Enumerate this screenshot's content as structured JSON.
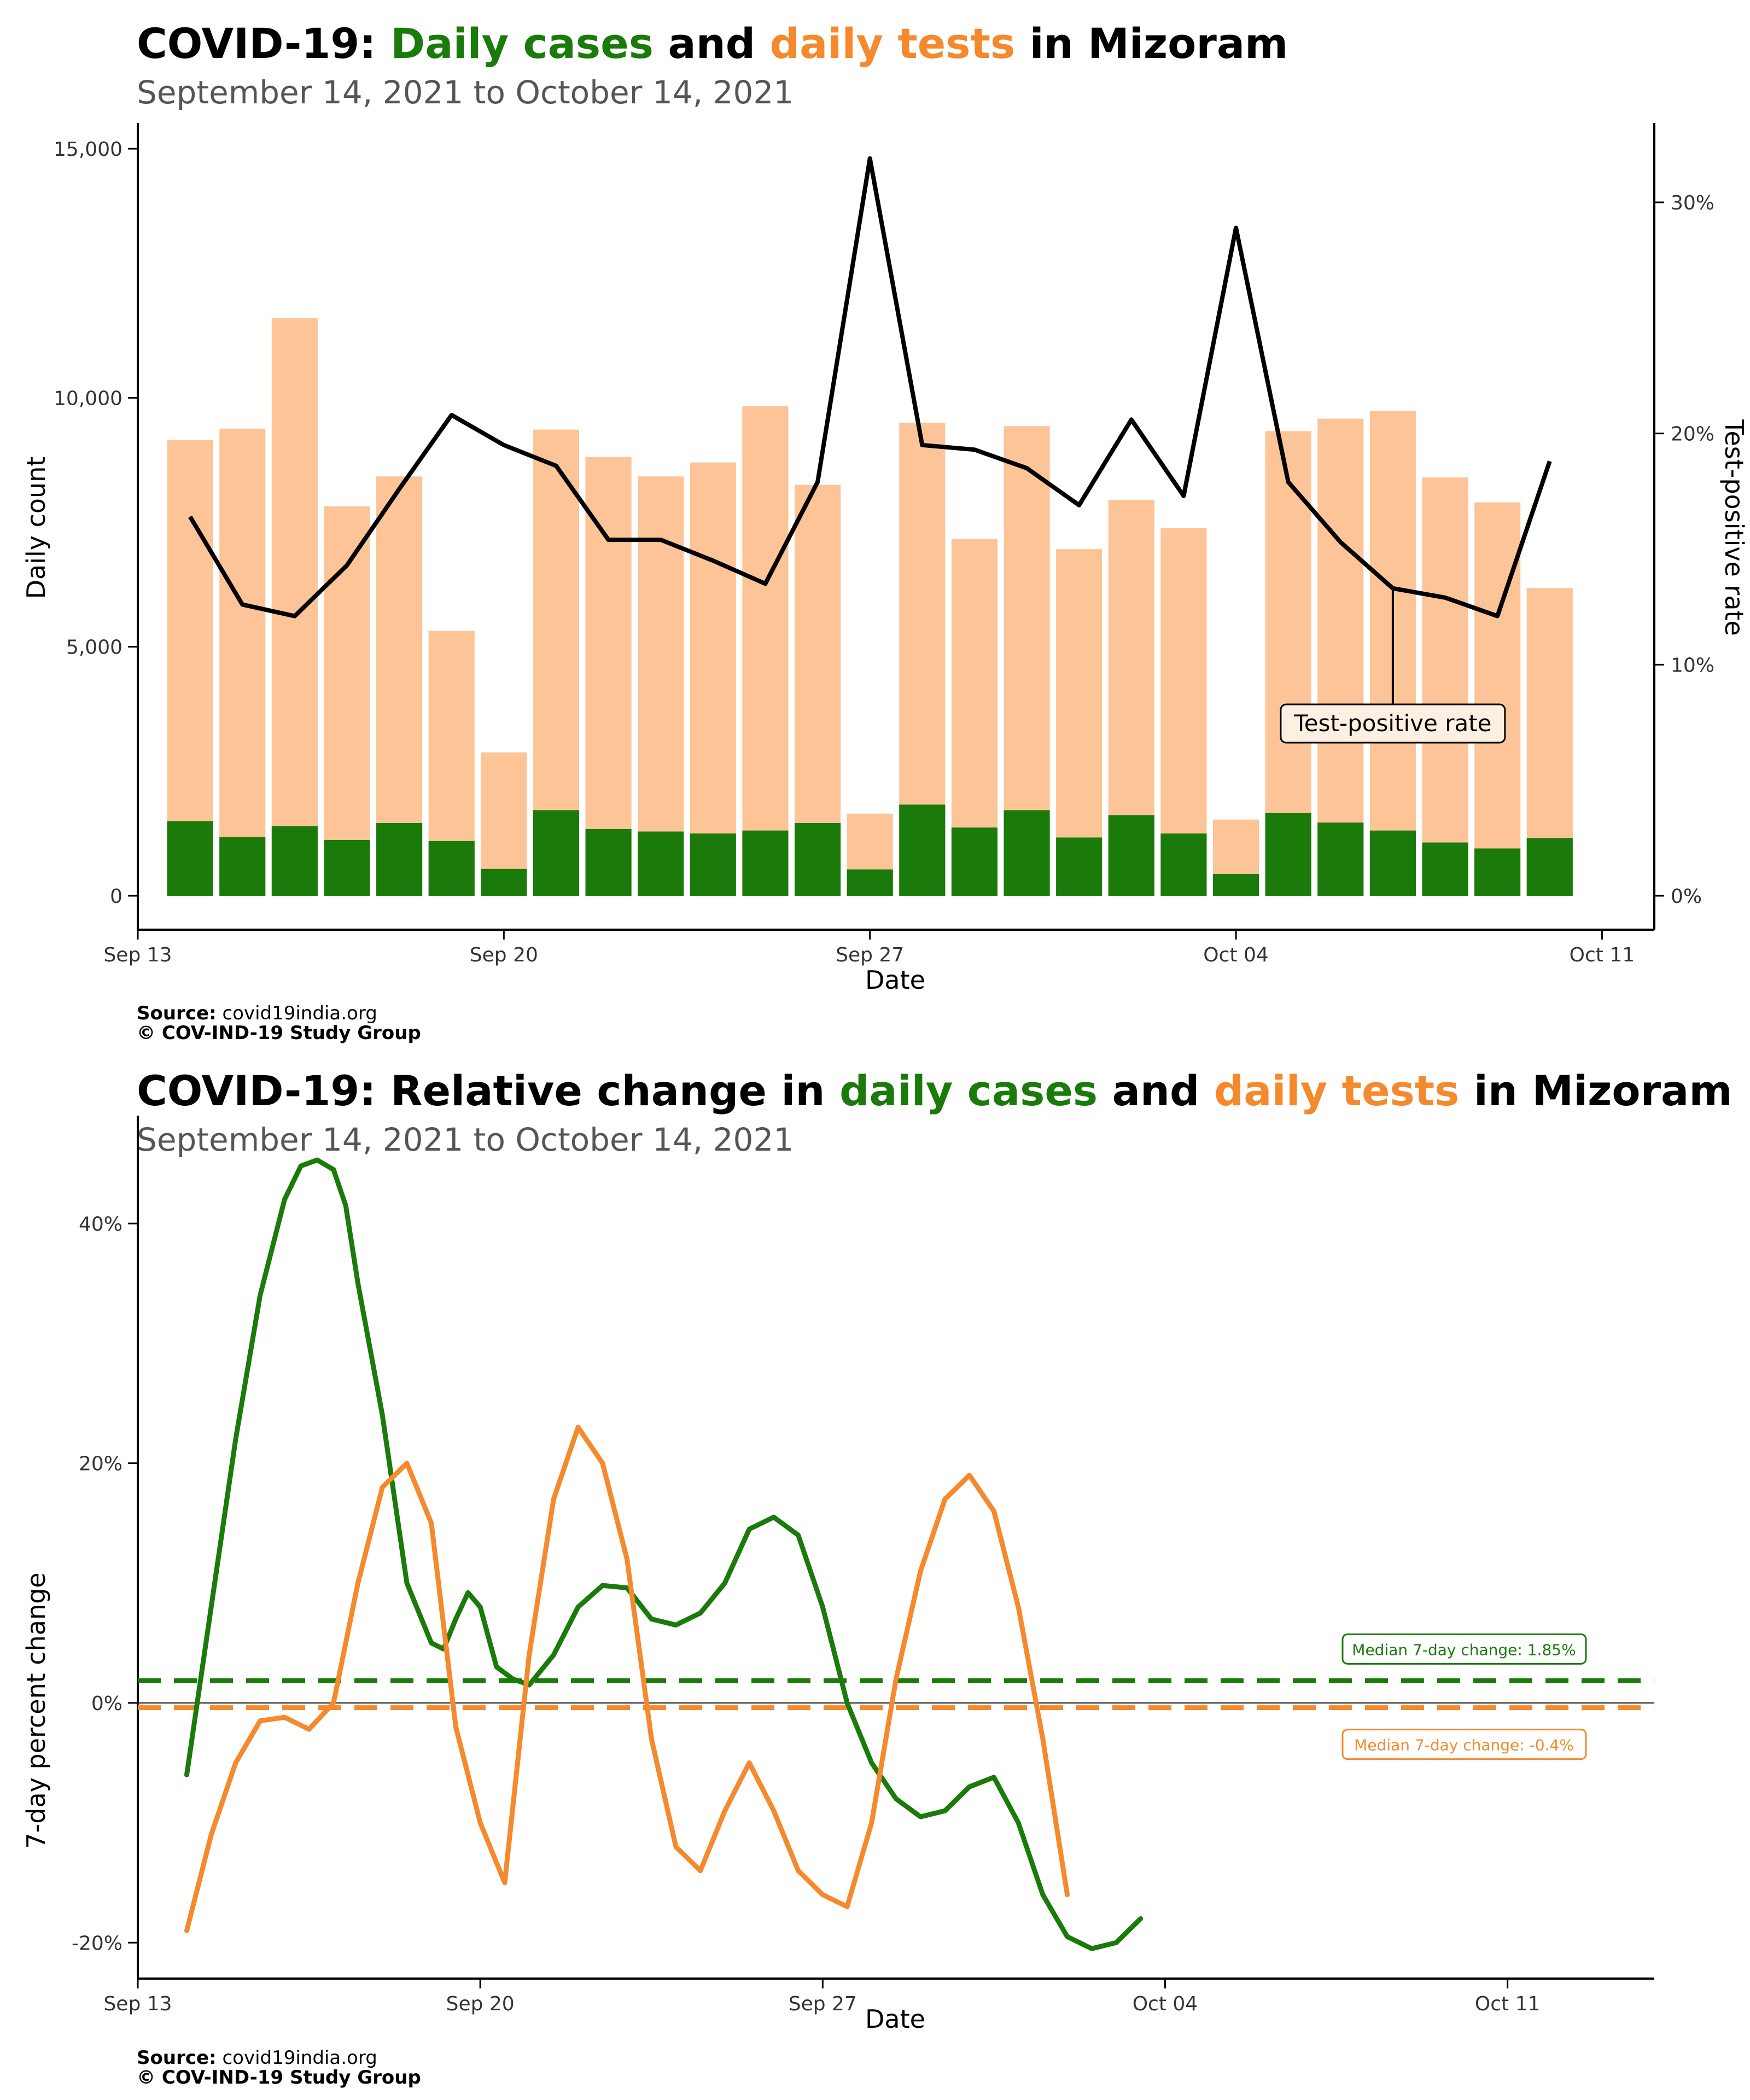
{
  "chart_data": [
    {
      "type": "bar",
      "title": {
        "prefix": "COVID-19:",
        "series1": "Daily cases",
        "middle": "and",
        "series2": "daily tests",
        "suffix": "in Mizoram"
      },
      "subtitle": "September 14, 2021 to October 14, 2021",
      "xlabel": "Date",
      "ylabel": "Daily count",
      "y2label": "Test-positive rate",
      "x_ticks": [
        "Sep 13",
        "Sep 20",
        "Sep 27",
        "Oct 04",
        "Oct 11"
      ],
      "x_tick_dates": [
        "2021-09-13",
        "2021-09-20",
        "2021-09-27",
        "2021-10-04",
        "2021-10-11"
      ],
      "xlim": [
        "2021-09-13",
        "2021-10-12"
      ],
      "y_ticks": [
        "0",
        "5,000",
        "10,000",
        "15,000"
      ],
      "y_tick_values": [
        0,
        5000,
        10000,
        15000
      ],
      "ylim": [
        0,
        15000
      ],
      "y2_ticks": [
        "0%",
        "10%",
        "20%",
        "30%"
      ],
      "y2_tick_values": [
        0,
        10,
        20,
        30
      ],
      "y2lim": [
        0,
        30
      ],
      "dates": [
        "2021-09-14",
        "2021-09-15",
        "2021-09-16",
        "2021-09-17",
        "2021-09-18",
        "2021-09-19",
        "2021-09-20",
        "2021-09-21",
        "2021-09-22",
        "2021-09-23",
        "2021-09-24",
        "2021-09-25",
        "2021-09-26",
        "2021-09-27",
        "2021-09-28",
        "2021-09-29",
        "2021-09-30",
        "2021-10-01",
        "2021-10-02",
        "2021-10-03",
        "2021-10-04",
        "2021-10-05",
        "2021-10-06",
        "2021-10-07",
        "2021-10-08",
        "2021-10-09",
        "2021-10-10",
        "2021-10-11"
      ],
      "series": [
        {
          "name": "Daily tests",
          "color": "#fdc597",
          "values": [
            9150,
            9380,
            11600,
            7820,
            8420,
            5320,
            2880,
            9360,
            8810,
            8420,
            8700,
            9830,
            8250,
            1650,
            9500,
            7160,
            9430,
            6960,
            7950,
            7380,
            1530,
            9330,
            9580,
            9730,
            8400,
            7900,
            6180,
            null
          ]
        },
        {
          "name": "Daily cases",
          "color": "#1a7a0a",
          "values": [
            1500,
            1180,
            1400,
            1120,
            1460,
            1100,
            540,
            1720,
            1340,
            1290,
            1250,
            1310,
            1460,
            530,
            1830,
            1370,
            1720,
            1170,
            1620,
            1250,
            440,
            1660,
            1470,
            1310,
            1070,
            950,
            1160,
            null
          ]
        },
        {
          "name": "Test-positive rate",
          "color": "#000000",
          "values": [
            16.4,
            12.6,
            12.1,
            14.3,
            17.6,
            20.8,
            19.5,
            18.6,
            15.4,
            15.4,
            14.5,
            13.5,
            17.9,
            31.9,
            19.5,
            19.3,
            18.5,
            16.9,
            20.6,
            17.3,
            28.9,
            17.9,
            15.3,
            13.3,
            12.9,
            12.1,
            18.8,
            null
          ]
        }
      ],
      "annotation": {
        "text": "Test-positive rate"
      },
      "source_label": "Source:",
      "source_text": "covid19india.org",
      "copyright": "© COV-IND-19 Study Group"
    },
    {
      "type": "line",
      "title": {
        "prefix": "COVID-19: Relative change in",
        "series1": "daily cases",
        "middle": "and",
        "series2": "daily tests",
        "suffix": "in Mizoram"
      },
      "subtitle": "September 14, 2021 to October 14, 2021",
      "xlabel": "Date",
      "ylabel": "7-day percent change",
      "x_ticks": [
        "Sep 13",
        "Sep 20",
        "Sep 27",
        "Oct 04",
        "Oct 11"
      ],
      "x_tick_dates": [
        "2021-09-13",
        "2021-09-20",
        "2021-09-27",
        "2021-10-04",
        "2021-10-11"
      ],
      "xlim": [
        "2021-09-13",
        "2021-10-14"
      ],
      "y_ticks": [
        "-20%",
        "0%",
        "20%",
        "40%"
      ],
      "y_tick_values": [
        -20,
        0,
        20,
        40
      ],
      "ylim": [
        -23,
        49
      ],
      "series": [
        {
          "name": "Daily cases",
          "color": "#1a7a0a",
          "points": [
            [
              "2021-09-14 00:00",
              -6
            ],
            [
              "2021-09-14 12:00",
              8
            ],
            [
              "2021-09-15 00:00",
              22
            ],
            [
              "2021-09-15 12:00",
              34
            ],
            [
              "2021-09-16 00:00",
              42
            ],
            [
              "2021-09-16 08:00",
              44.8
            ],
            [
              "2021-09-16 16:00",
              45.3
            ],
            [
              "2021-09-17 00:00",
              44.5
            ],
            [
              "2021-09-17 06:00",
              41.5
            ],
            [
              "2021-09-17 12:00",
              35
            ],
            [
              "2021-09-18 00:00",
              24
            ],
            [
              "2021-09-18 12:00",
              10
            ],
            [
              "2021-09-19 00:00",
              5
            ],
            [
              "2021-09-19 06:00",
              4.5
            ],
            [
              "2021-09-19 12:00",
              7
            ],
            [
              "2021-09-19 18:00",
              9.2
            ],
            [
              "2021-09-20 00:00",
              8
            ],
            [
              "2021-09-20 08:00",
              3
            ],
            [
              "2021-09-20 16:00",
              2
            ],
            [
              "2021-09-21 00:00",
              1.5
            ],
            [
              "2021-09-21 12:00",
              4
            ],
            [
              "2021-09-22 00:00",
              8
            ],
            [
              "2021-09-22 12:00",
              9.8
            ],
            [
              "2021-09-23 00:00",
              9.6
            ],
            [
              "2021-09-23 12:00",
              7
            ],
            [
              "2021-09-24 00:00",
              6.5
            ],
            [
              "2021-09-24 12:00",
              7.5
            ],
            [
              "2021-09-25 00:00",
              10
            ],
            [
              "2021-09-25 12:00",
              14.5
            ],
            [
              "2021-09-26 00:00",
              15.5
            ],
            [
              "2021-09-26 12:00",
              14
            ],
            [
              "2021-09-27 00:00",
              8
            ],
            [
              "2021-09-27 12:00",
              0
            ],
            [
              "2021-09-28 00:00",
              -5
            ],
            [
              "2021-09-28 12:00",
              -8
            ],
            [
              "2021-09-29 00:00",
              -9.5
            ],
            [
              "2021-09-29 12:00",
              -9
            ],
            [
              "2021-09-30 00:00",
              -7
            ],
            [
              "2021-09-30 12:00",
              -6.2
            ],
            [
              "2021-10-01 00:00",
              -10
            ],
            [
              "2021-10-01 12:00",
              -16
            ],
            [
              "2021-10-02 00:00",
              -19.5
            ],
            [
              "2021-10-02 12:00",
              -20.5
            ],
            [
              "2021-10-03 00:00",
              -20
            ],
            [
              "2021-10-03 12:00",
              -18
            ]
          ]
        },
        {
          "name": "Daily tests",
          "color": "#f5892d",
          "points": [
            [
              "2021-09-14 00:00",
              -19
            ],
            [
              "2021-09-14 12:00",
              -11
            ],
            [
              "2021-09-15 00:00",
              -5
            ],
            [
              "2021-09-15 12:00",
              -1.5
            ],
            [
              "2021-09-16 00:00",
              -1.2
            ],
            [
              "2021-09-16 12:00",
              -2.2
            ],
            [
              "2021-09-17 00:00",
              0
            ],
            [
              "2021-09-17 12:00",
              10
            ],
            [
              "2021-09-18 00:00",
              18
            ],
            [
              "2021-09-18 12:00",
              20
            ],
            [
              "2021-09-19 00:00",
              15
            ],
            [
              "2021-09-19 12:00",
              -2
            ],
            [
              "2021-09-20 00:00",
              -10
            ],
            [
              "2021-09-20 12:00",
              -15
            ],
            [
              "2021-09-21 00:00",
              4
            ],
            [
              "2021-09-21 12:00",
              17
            ],
            [
              "2021-09-22 00:00",
              23
            ],
            [
              "2021-09-22 12:00",
              20
            ],
            [
              "2021-09-23 00:00",
              12
            ],
            [
              "2021-09-23 12:00",
              -3
            ],
            [
              "2021-09-24 00:00",
              -12
            ],
            [
              "2021-09-24 12:00",
              -14
            ],
            [
              "2021-09-25 00:00",
              -9
            ],
            [
              "2021-09-25 12:00",
              -5
            ],
            [
              "2021-09-26 00:00",
              -9
            ],
            [
              "2021-09-26 12:00",
              -14
            ],
            [
              "2021-09-27 00:00",
              -16
            ],
            [
              "2021-09-27 12:00",
              -17
            ],
            [
              "2021-09-28 00:00",
              -10
            ],
            [
              "2021-09-28 12:00",
              2
            ],
            [
              "2021-09-29 00:00",
              11
            ],
            [
              "2021-09-29 12:00",
              17
            ],
            [
              "2021-09-30 00:00",
              19
            ],
            [
              "2021-09-30 12:00",
              16
            ],
            [
              "2021-10-01 00:00",
              8
            ],
            [
              "2021-10-01 12:00",
              -3
            ],
            [
              "2021-10-02 00:00",
              -16
            ]
          ]
        }
      ],
      "reference_lines": [
        {
          "name": "Median 7-day change: 1.85%",
          "value": 1.85,
          "color": "#1a7a0a"
        },
        {
          "name": "Median 7-day change: -0.4%",
          "value": -0.4,
          "color": "#f5892d"
        }
      ],
      "source_label": "Source:",
      "source_text": "covid19india.org",
      "copyright": "© COV-IND-19 Study Group"
    }
  ]
}
